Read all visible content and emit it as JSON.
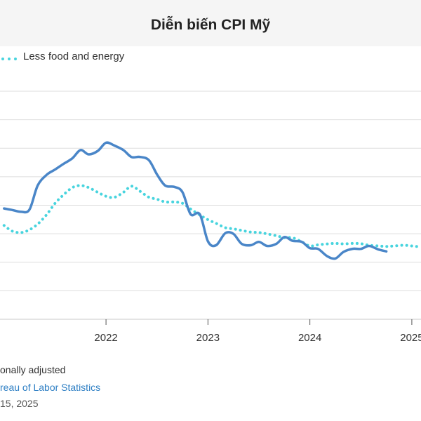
{
  "title": "Diễn biến CPI Mỹ",
  "chart_data": {
    "type": "line",
    "title": "Diễn biến CPI Mỹ",
    "xlabel": "",
    "ylabel": "",
    "x_ticks": [
      "2022",
      "2023",
      "2024",
      "2025"
    ],
    "x_tick_values": [
      2022,
      2023,
      2024,
      2025
    ],
    "xlim": [
      2020.96,
      2025.09
    ],
    "ylim": [
      0,
      1
    ],
    "gridlines": 8,
    "grid": true,
    "legend_position": "top-left",
    "series": [
      {
        "name": "",
        "color": "#4a86c8",
        "style": "solid",
        "points": [
          [
            2021.0,
            0.486
          ],
          [
            2021.08,
            0.479
          ],
          [
            2021.17,
            0.471
          ],
          [
            2021.25,
            0.4815
          ],
          [
            2021.33,
            0.587
          ],
          [
            2021.42,
            0.634
          ],
          [
            2021.5,
            0.6565
          ],
          [
            2021.58,
            0.6805
          ],
          [
            2021.67,
            0.706
          ],
          [
            2021.75,
            0.742
          ],
          [
            2021.83,
            0.723
          ],
          [
            2021.92,
            0.7385
          ],
          [
            2022.0,
            0.774
          ],
          [
            2022.08,
            0.762
          ],
          [
            2022.17,
            0.742
          ],
          [
            2022.25,
            0.7115
          ],
          [
            2022.33,
            0.712
          ],
          [
            2022.42,
            0.698
          ],
          [
            2022.5,
            0.6355
          ],
          [
            2022.58,
            0.5865
          ],
          [
            2022.67,
            0.5805
          ],
          [
            2022.75,
            0.5575
          ],
          [
            2022.83,
            0.4605
          ],
          [
            2022.92,
            0.4605
          ],
          [
            2023.0,
            0.3415
          ],
          [
            2023.08,
            0.3245
          ],
          [
            2023.17,
            0.3775
          ],
          [
            2023.25,
            0.3745
          ],
          [
            2023.33,
            0.331
          ],
          [
            2023.42,
            0.3245
          ],
          [
            2023.5,
            0.3395
          ],
          [
            2023.58,
            0.3215
          ],
          [
            2023.67,
            0.3305
          ],
          [
            2023.75,
            0.3605
          ],
          [
            2023.83,
            0.344
          ],
          [
            2023.92,
            0.3395
          ],
          [
            2024.0,
            0.312
          ],
          [
            2024.08,
            0.3085
          ],
          [
            2024.17,
            0.2765
          ],
          [
            2024.25,
            0.2665
          ],
          [
            2024.33,
            0.2955
          ],
          [
            2024.42,
            0.309
          ],
          [
            2024.5,
            0.3085
          ],
          [
            2024.58,
            0.3215
          ],
          [
            2024.67,
            0.3065
          ],
          [
            2024.75,
            0.2975
          ]
        ]
      },
      {
        "name": "Less food and energy",
        "color": "#48d4de",
        "style": "dotted",
        "points": [
          [
            2021.0,
            0.4115
          ],
          [
            2021.08,
            0.3865
          ],
          [
            2021.17,
            0.3805
          ],
          [
            2021.25,
            0.3925
          ],
          [
            2021.33,
            0.4175
          ],
          [
            2021.42,
            0.46
          ],
          [
            2021.5,
            0.5085
          ],
          [
            2021.58,
            0.5445
          ],
          [
            2021.67,
            0.5775
          ],
          [
            2021.75,
            0.5865
          ],
          [
            2021.83,
            0.5775
          ],
          [
            2021.92,
            0.5565
          ],
          [
            2022.0,
            0.5395
          ],
          [
            2022.08,
            0.5345
          ],
          [
            2022.17,
            0.5565
          ],
          [
            2022.25,
            0.5835
          ],
          [
            2022.33,
            0.5625
          ],
          [
            2022.42,
            0.5355
          ],
          [
            2022.5,
            0.5265
          ],
          [
            2022.58,
            0.5145
          ],
          [
            2022.67,
            0.5145
          ],
          [
            2022.75,
            0.5085
          ],
          [
            2022.83,
            0.4835
          ],
          [
            2022.92,
            0.4575
          ],
          [
            2023.0,
            0.4365
          ],
          [
            2023.08,
            0.4205
          ],
          [
            2023.17,
            0.4015
          ],
          [
            2023.25,
            0.3965
          ],
          [
            2023.33,
            0.3895
          ],
          [
            2023.42,
            0.3825
          ],
          [
            2023.5,
            0.3805
          ],
          [
            2023.58,
            0.3745
          ],
          [
            2023.67,
            0.3665
          ],
          [
            2023.75,
            0.3575
          ],
          [
            2023.83,
            0.3575
          ],
          [
            2023.92,
            0.3395
          ],
          [
            2024.0,
            0.3215
          ],
          [
            2024.08,
            0.3265
          ],
          [
            2024.17,
            0.3305
          ],
          [
            2024.25,
            0.3325
          ],
          [
            2024.33,
            0.3305
          ],
          [
            2024.42,
            0.3325
          ],
          [
            2024.5,
            0.3315
          ],
          [
            2024.58,
            0.3245
          ],
          [
            2024.67,
            0.3215
          ],
          [
            2024.75,
            0.3195
          ],
          [
            2024.83,
            0.3215
          ],
          [
            2024.92,
            0.3245
          ],
          [
            2025.0,
            0.3215
          ],
          [
            2025.08,
            0.3175
          ]
        ]
      }
    ]
  },
  "footer": {
    "line1": "onally adjusted",
    "line2": "reau of Labor Statistics",
    "line3": "15, 2025"
  }
}
